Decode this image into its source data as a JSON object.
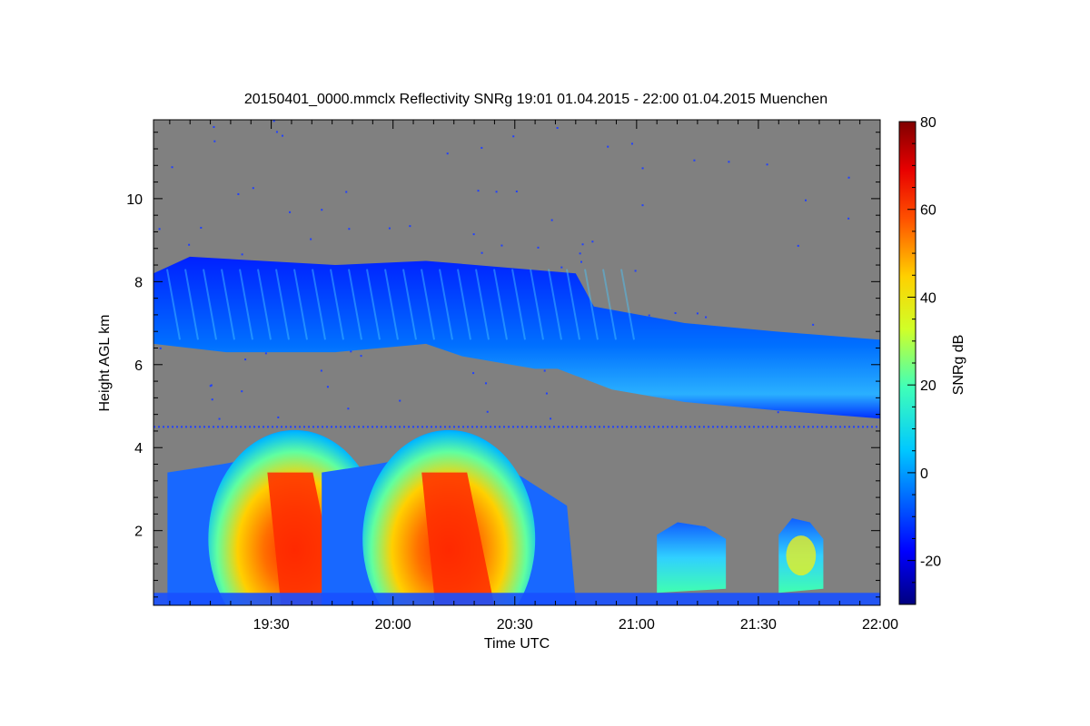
{
  "chart_data": {
    "type": "heatmap",
    "title": "20150401_0000.mmclx Reflectivity SNRg   19:01 01.04.2015 - 22:00 01.04.2015 Muenchen",
    "xlabel": "Time UTC",
    "ylabel": "Height AGL km",
    "xlim": [
      "19:01",
      "22:00"
    ],
    "ylim": [
      0.2,
      11.9
    ],
    "x_ticks": [
      "19:30",
      "20:00",
      "20:30",
      "21:00",
      "21:30",
      "22:00"
    ],
    "y_ticks": [
      2,
      4,
      6,
      8,
      10
    ],
    "colorbar": {
      "label": "SNRg dB",
      "range": [
        -30,
        80
      ],
      "ticks": [
        -20,
        0,
        20,
        40,
        60,
        80
      ]
    },
    "background_color": "#808080",
    "colormap": "jet",
    "features": [
      {
        "kind": "cloud_layer",
        "time_range": [
          "19:01",
          "22:00"
        ],
        "top_km": [
          8.5,
          6.5
        ],
        "base_km": [
          6.3,
          4.7
        ],
        "snr_db_range": [
          -20,
          5
        ]
      },
      {
        "kind": "precipitation_core",
        "time_center": "19:38",
        "top_km": 3.8,
        "max_snr_db": 65
      },
      {
        "kind": "precipitation_core",
        "time_center": "20:16",
        "top_km": 3.8,
        "max_snr_db": 65
      },
      {
        "kind": "low_cloud",
        "time_range": [
          "21:05",
          "21:22"
        ],
        "top_km": 2.2,
        "snr_db_range": [
          -10,
          20
        ]
      },
      {
        "kind": "low_cloud",
        "time_range": [
          "21:35",
          "21:46"
        ],
        "top_km": 2.3,
        "snr_db_range": [
          0,
          40
        ]
      }
    ]
  }
}
